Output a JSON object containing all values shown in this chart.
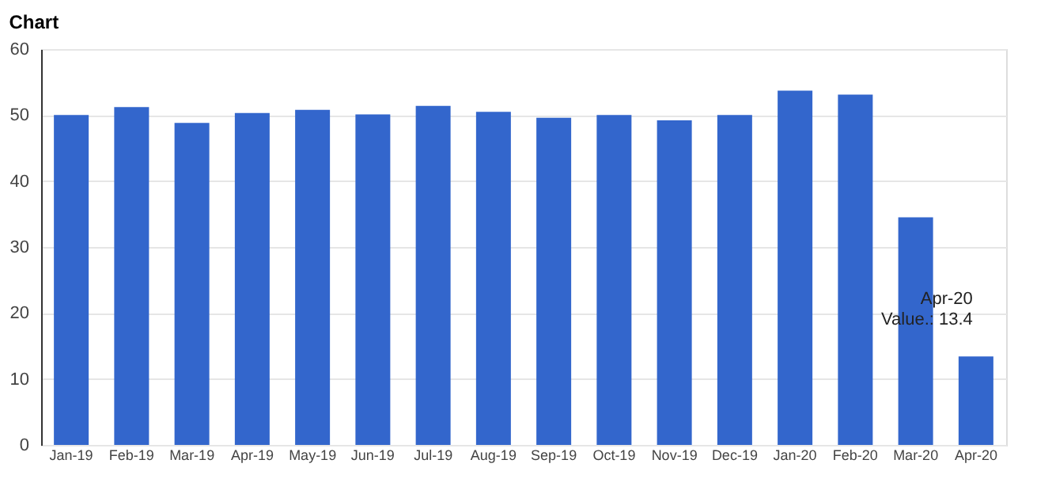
{
  "chart_data": {
    "type": "bar",
    "title": "Chart",
    "categories": [
      "Jan-19",
      "Feb-19",
      "Mar-19",
      "Apr-19",
      "May-19",
      "Jun-19",
      "Jul-19",
      "Aug-19",
      "Sep-19",
      "Oct-19",
      "Nov-19",
      "Dec-19",
      "Jan-20",
      "Feb-20",
      "Mar-20",
      "Apr-20"
    ],
    "values": [
      50.0,
      51.2,
      48.8,
      50.3,
      50.8,
      50.1,
      51.4,
      50.5,
      49.6,
      50.0,
      49.2,
      50.0,
      53.7,
      53.1,
      34.5,
      13.4
    ],
    "color": "#3366cc",
    "ylim": [
      0,
      60
    ],
    "yticks": [
      0,
      10,
      20,
      30,
      40,
      50,
      60
    ],
    "grid": "y",
    "annotations": [
      {
        "text": "Apr-20\nValue.: 13.4",
        "x": "Apr-20",
        "y": 13.4
      }
    ]
  }
}
